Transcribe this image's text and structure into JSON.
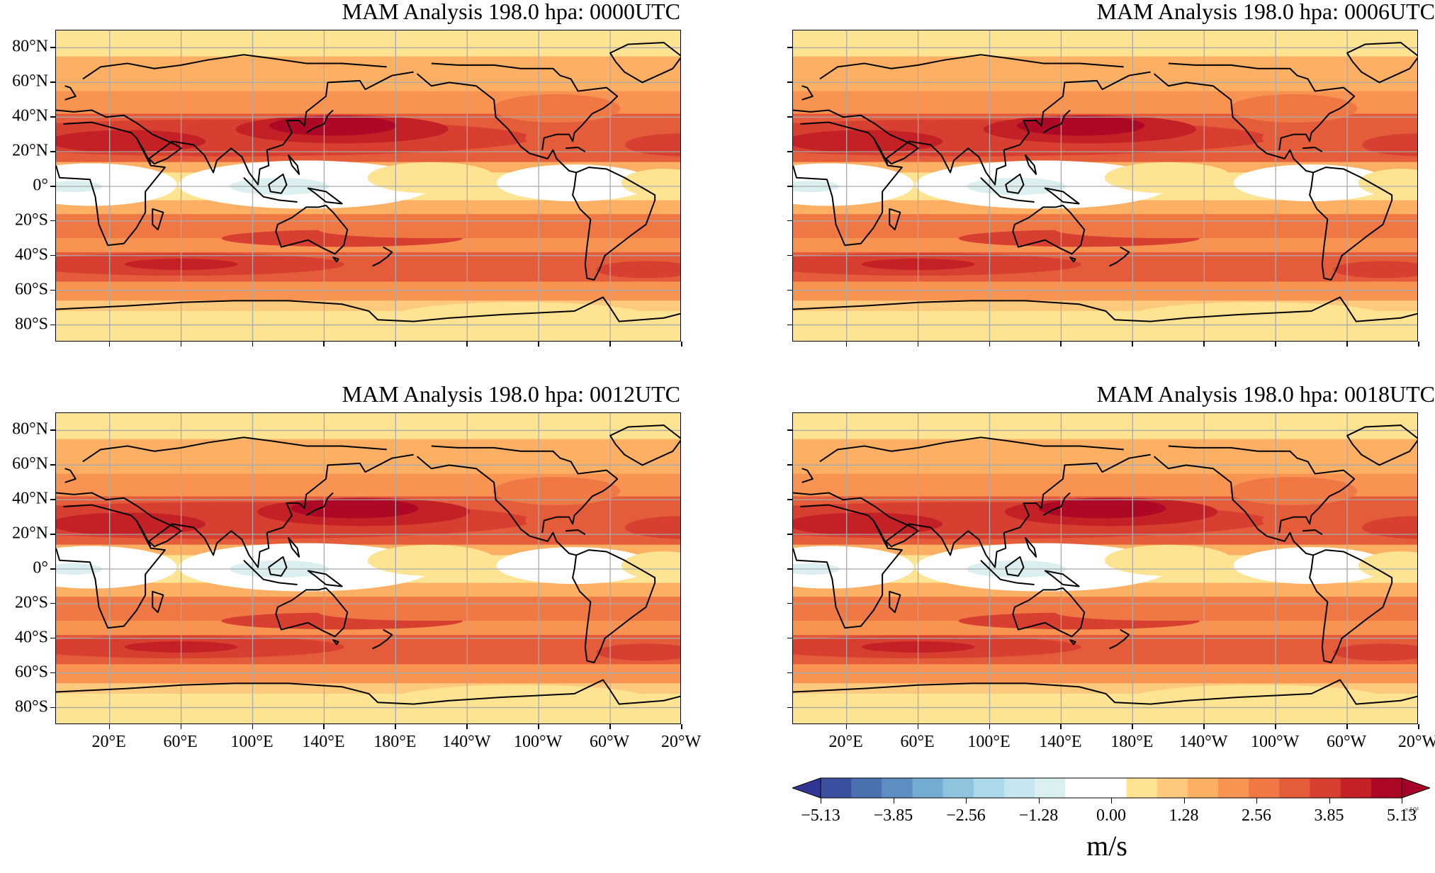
{
  "panels": [
    {
      "title": "MAM Analysis 198.0 hpa: 0000UTC",
      "show_ylabels": true,
      "show_xlabels": false
    },
    {
      "title": "MAM Analysis 198.0 hpa: 0006UTC",
      "show_ylabels": false,
      "show_xlabels": false
    },
    {
      "title": "MAM Analysis 198.0 hpa: 0012UTC",
      "show_ylabels": true,
      "show_xlabels": true
    },
    {
      "title": "MAM Analysis 198.0 hpa: 0018UTC",
      "show_ylabels": false,
      "show_xlabels": true
    }
  ],
  "lat_labels": [
    "80°N",
    "60°N",
    "40°N",
    "20°N",
    "0°",
    "20°S",
    "40°S",
    "60°S",
    "80°S"
  ],
  "lon_labels": [
    "20°E",
    "60°E",
    "100°E",
    "140°E",
    "180°E",
    "140°W",
    "100°W",
    "60°W",
    "20°W"
  ],
  "colorbar": {
    "tick_labels": [
      "−5.13",
      "−3.85",
      "−2.56",
      "−1.28",
      "0.00",
      "1.28",
      "2.56",
      "3.85",
      "5.13"
    ],
    "unit": "m/s",
    "scale": "×10¹",
    "colors": [
      "#313695",
      "#3b51a0",
      "#4a71b0",
      "#5d8dc2",
      "#74add1",
      "#90c4de",
      "#abd9e9",
      "#c6e5ee",
      "#dceff0",
      "#ffffff",
      "#ffffff",
      "#fee393",
      "#fdc97c",
      "#fdb063",
      "#f99351",
      "#f07844",
      "#e45c3a",
      "#d73f30",
      "#c42127",
      "#ad0826",
      "#a50026"
    ]
  }
}
